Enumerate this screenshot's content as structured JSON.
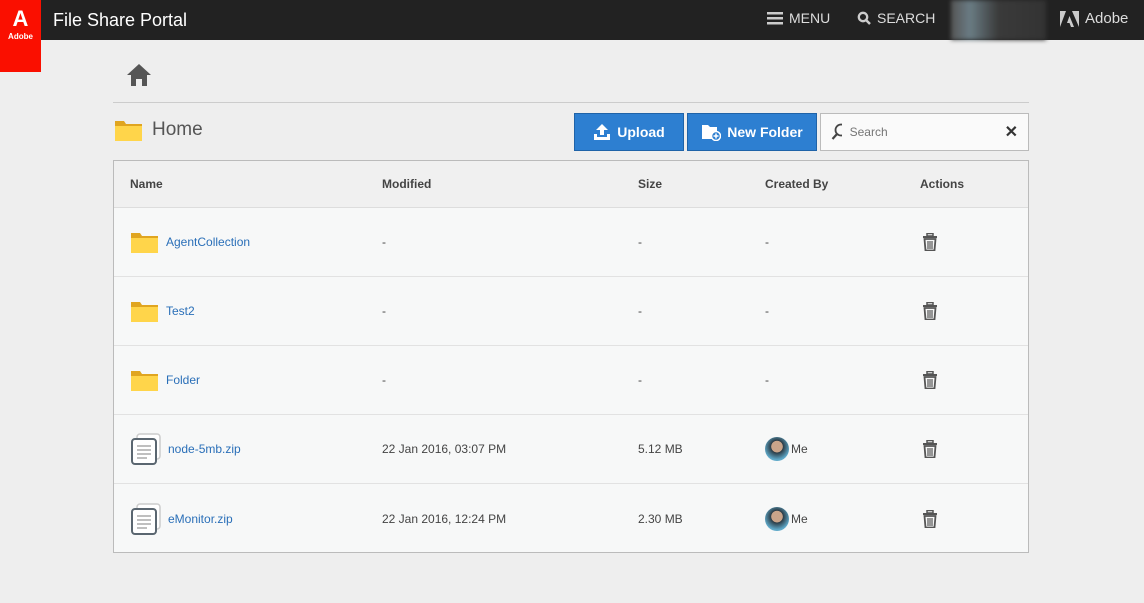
{
  "header": {
    "logo_text": "Adobe",
    "title": "File Share Portal",
    "menu_label": "MENU",
    "search_label": "SEARCH",
    "brand": "Adobe"
  },
  "breadcrumb": {
    "current": "Home"
  },
  "toolbar": {
    "upload_label": "Upload",
    "new_folder_label": "New Folder",
    "search_placeholder": "Search"
  },
  "table": {
    "columns": [
      "Name",
      "Modified",
      "Size",
      "Created By",
      "Actions"
    ],
    "rows": [
      {
        "type": "folder",
        "name": "AgentCollection",
        "modified": "-",
        "size": "-",
        "created_by": "-"
      },
      {
        "type": "folder",
        "name": "Test2",
        "modified": "-",
        "size": "-",
        "created_by": "-"
      },
      {
        "type": "folder",
        "name": "Folder",
        "modified": "-",
        "size": "-",
        "created_by": "-"
      },
      {
        "type": "file",
        "name": "node-5mb.zip",
        "modified": "22 Jan 2016, 03:07 PM",
        "size": "5.12 MB",
        "created_by": "Me"
      },
      {
        "type": "file",
        "name": "eMonitor.zip",
        "modified": "22 Jan 2016, 12:24 PM",
        "size": "2.30 MB",
        "created_by": "Me"
      }
    ]
  },
  "colors": {
    "accent": "#2d7fd1",
    "adobe_red": "#fa0f00",
    "topbar": "#222222",
    "link": "#2a6fb8"
  }
}
